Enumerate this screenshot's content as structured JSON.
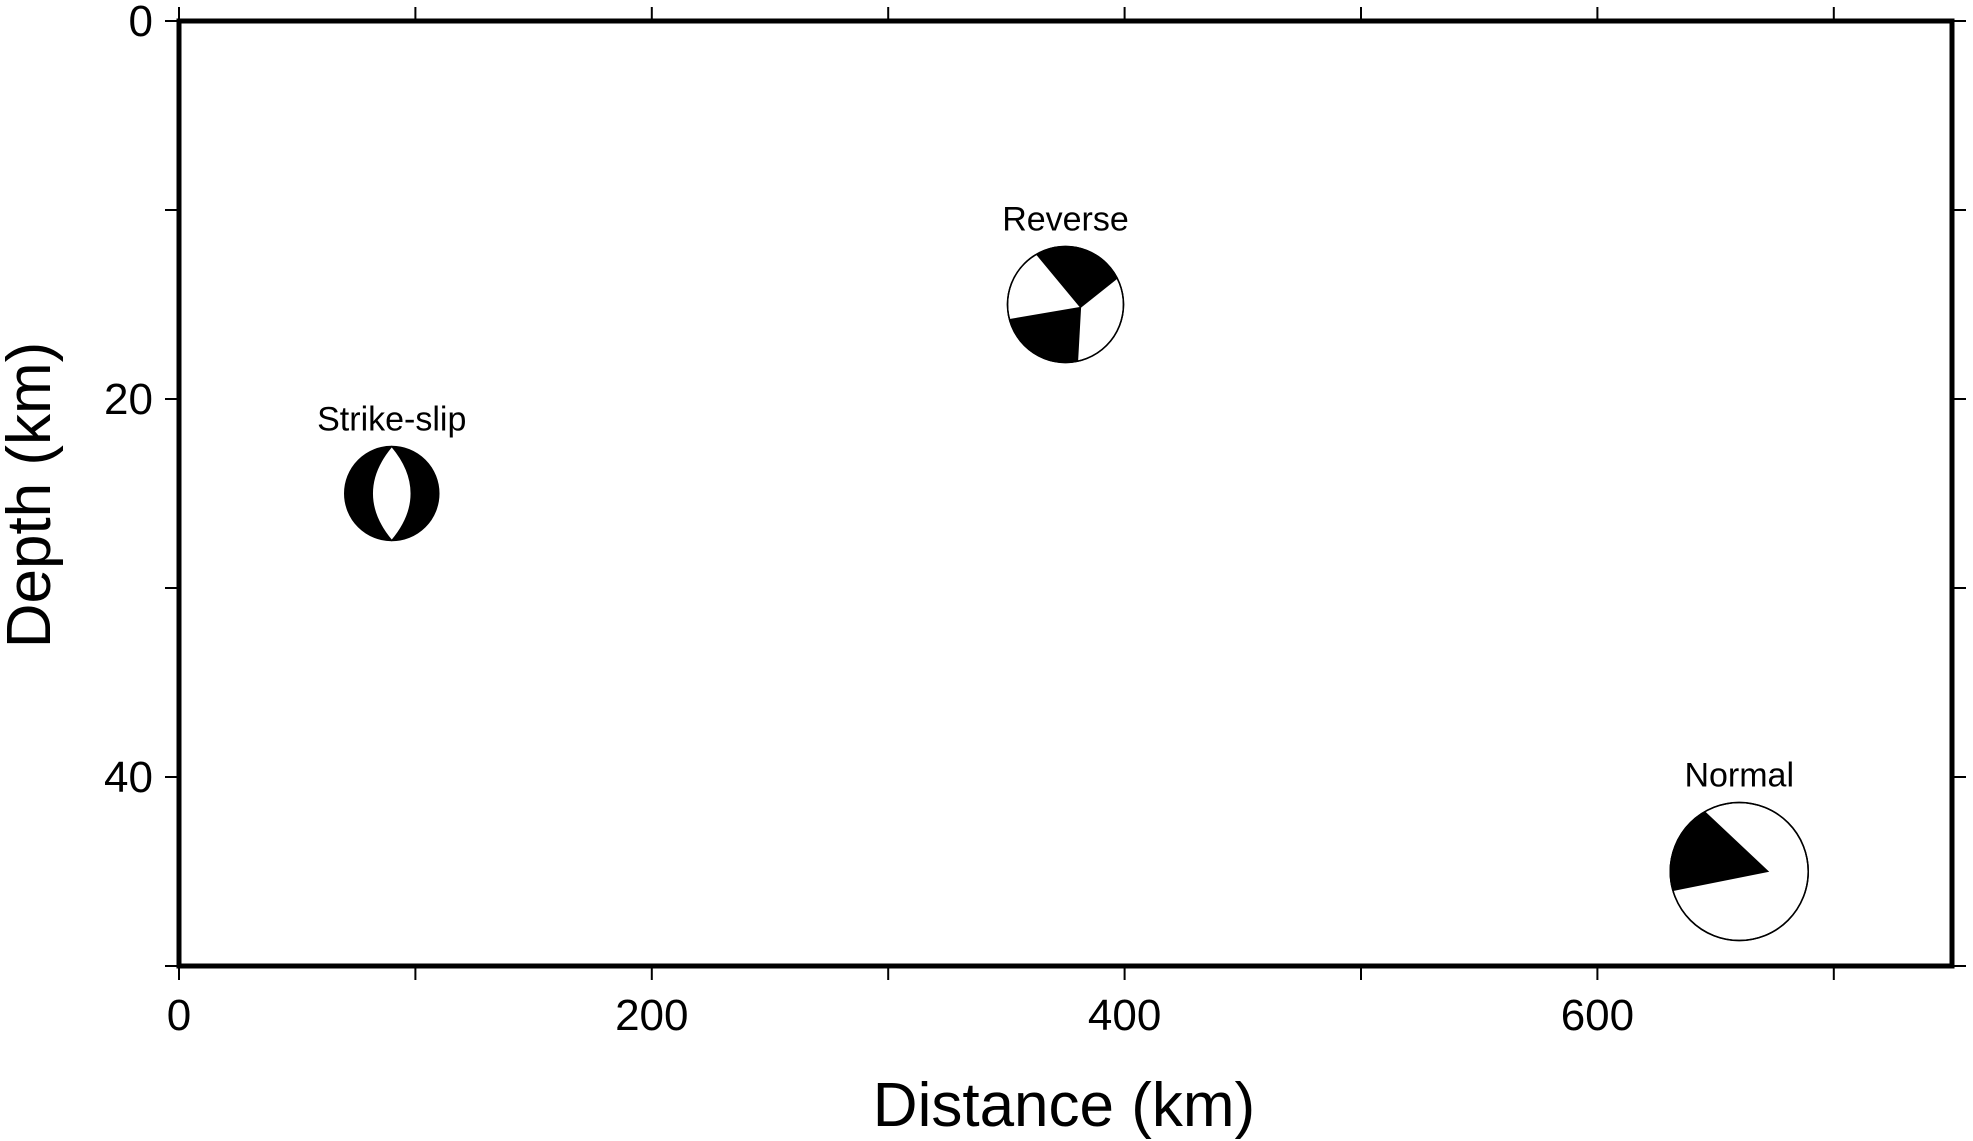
{
  "chart_data": {
    "type": "scatter",
    "title": "",
    "xlabel": "Distance (km)",
    "ylabel": "Depth (km)",
    "xlim": [
      0,
      750
    ],
    "ylim": [
      0,
      50
    ],
    "y_inverted": true,
    "grid": false,
    "x_ticks": [
      0,
      200,
      400,
      600
    ],
    "y_ticks": [
      0,
      20,
      40
    ],
    "x_minor_ticks": [
      100,
      300,
      500,
      700
    ],
    "y_minor_ticks": [
      10,
      30,
      50
    ],
    "mark_type": "focal-mechanism-beachball",
    "colors": {
      "compression": "#000000",
      "dilatation": "#ffffff"
    },
    "events": [
      {
        "label": "Strike-slip",
        "distance": 90,
        "depth": 25,
        "magnitude": 5.0
      },
      {
        "label": "Reverse",
        "distance": 375,
        "depth": 15,
        "magnitude": 6.0
      },
      {
        "label": "Normal",
        "distance": 660,
        "depth": 45,
        "magnitude": 7.0
      }
    ]
  }
}
